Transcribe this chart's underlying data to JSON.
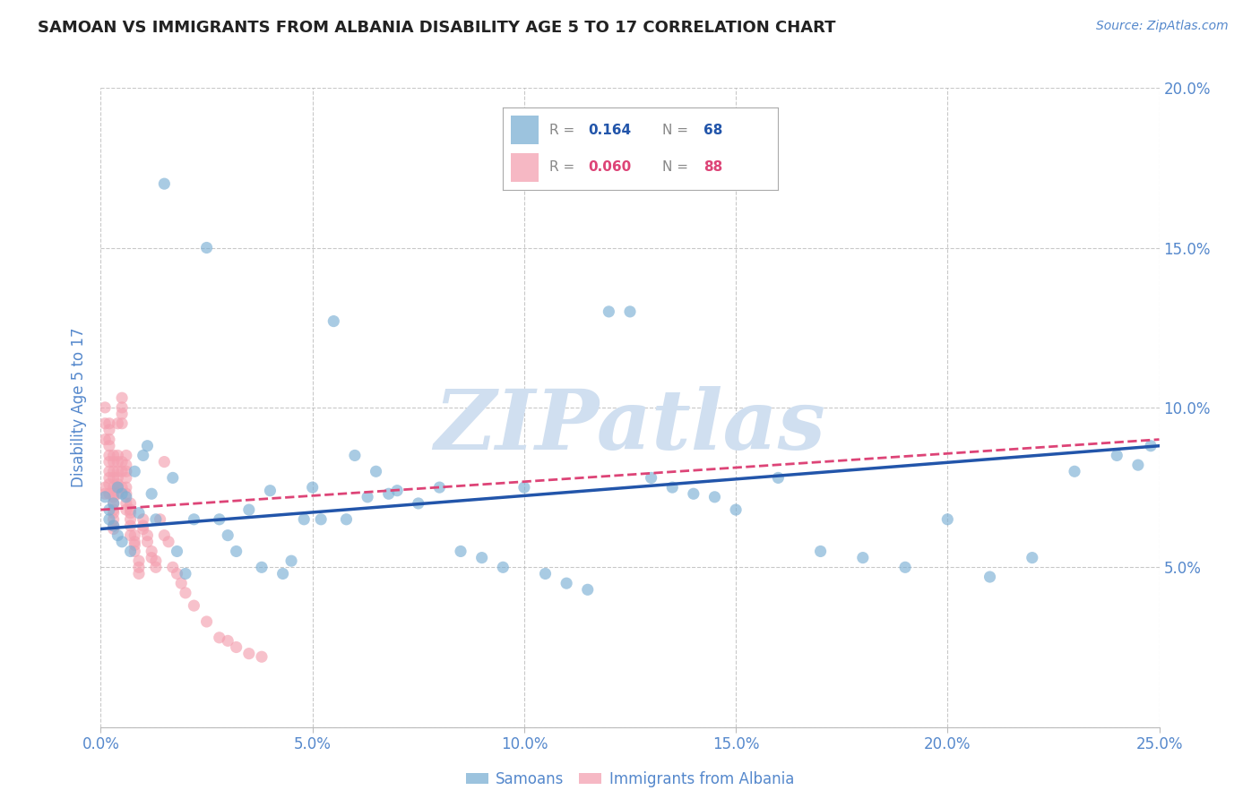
{
  "title": "SAMOAN VS IMMIGRANTS FROM ALBANIA DISABILITY AGE 5 TO 17 CORRELATION CHART",
  "source": "Source: ZipAtlas.com",
  "ylabel": "Disability Age 5 to 17",
  "xlim": [
    0.0,
    0.25
  ],
  "ylim": [
    0.0,
    0.2
  ],
  "xticks": [
    0.0,
    0.05,
    0.1,
    0.15,
    0.2,
    0.25
  ],
  "yticks": [
    0.0,
    0.05,
    0.1,
    0.15,
    0.2
  ],
  "xtick_labels": [
    "0.0%",
    "5.0%",
    "10.0%",
    "15.0%",
    "20.0%",
    "25.0%"
  ],
  "ytick_labels_right": [
    "",
    "5.0%",
    "10.0%",
    "15.0%",
    "20.0%"
  ],
  "samoan_color": "#7bafd4",
  "albania_color": "#f4a0b0",
  "samoan_trend_color": "#2255aa",
  "albania_trend_color": "#dd4477",
  "watermark": "ZIPatlas",
  "watermark_color": "#d0dff0",
  "background_color": "#ffffff",
  "grid_color": "#bbbbbb",
  "axis_color": "#5588cc",
  "samoan_x": [
    0.001,
    0.002,
    0.002,
    0.003,
    0.003,
    0.004,
    0.004,
    0.005,
    0.005,
    0.006,
    0.007,
    0.008,
    0.009,
    0.01,
    0.011,
    0.012,
    0.013,
    0.015,
    0.017,
    0.018,
    0.02,
    0.022,
    0.025,
    0.028,
    0.03,
    0.032,
    0.035,
    0.038,
    0.04,
    0.043,
    0.045,
    0.048,
    0.05,
    0.052,
    0.055,
    0.058,
    0.06,
    0.063,
    0.065,
    0.068,
    0.07,
    0.075,
    0.08,
    0.085,
    0.09,
    0.095,
    0.1,
    0.105,
    0.11,
    0.115,
    0.12,
    0.125,
    0.13,
    0.135,
    0.14,
    0.145,
    0.15,
    0.16,
    0.17,
    0.18,
    0.19,
    0.2,
    0.21,
    0.22,
    0.23,
    0.24,
    0.245,
    0.248
  ],
  "samoan_y": [
    0.072,
    0.068,
    0.065,
    0.07,
    0.063,
    0.075,
    0.06,
    0.073,
    0.058,
    0.072,
    0.055,
    0.08,
    0.067,
    0.085,
    0.088,
    0.073,
    0.065,
    0.17,
    0.078,
    0.055,
    0.048,
    0.065,
    0.15,
    0.065,
    0.06,
    0.055,
    0.068,
    0.05,
    0.074,
    0.048,
    0.052,
    0.065,
    0.075,
    0.065,
    0.127,
    0.065,
    0.085,
    0.072,
    0.08,
    0.073,
    0.074,
    0.07,
    0.075,
    0.055,
    0.053,
    0.05,
    0.075,
    0.048,
    0.045,
    0.043,
    0.13,
    0.13,
    0.078,
    0.075,
    0.073,
    0.072,
    0.068,
    0.078,
    0.055,
    0.053,
    0.05,
    0.065,
    0.047,
    0.053,
    0.08,
    0.085,
    0.082,
    0.088
  ],
  "albania_x": [
    0.001,
    0.001,
    0.001,
    0.001,
    0.001,
    0.002,
    0.002,
    0.002,
    0.002,
    0.002,
    0.002,
    0.002,
    0.002,
    0.002,
    0.002,
    0.003,
    0.003,
    0.003,
    0.003,
    0.003,
    0.003,
    0.003,
    0.003,
    0.003,
    0.003,
    0.003,
    0.003,
    0.003,
    0.004,
    0.004,
    0.004,
    0.004,
    0.004,
    0.004,
    0.004,
    0.004,
    0.005,
    0.005,
    0.005,
    0.005,
    0.005,
    0.005,
    0.005,
    0.006,
    0.006,
    0.006,
    0.006,
    0.006,
    0.006,
    0.006,
    0.006,
    0.007,
    0.007,
    0.007,
    0.007,
    0.007,
    0.007,
    0.008,
    0.008,
    0.008,
    0.008,
    0.009,
    0.009,
    0.009,
    0.01,
    0.01,
    0.01,
    0.011,
    0.011,
    0.012,
    0.012,
    0.013,
    0.013,
    0.014,
    0.015,
    0.015,
    0.016,
    0.017,
    0.018,
    0.019,
    0.02,
    0.022,
    0.025,
    0.028,
    0.03,
    0.032,
    0.035,
    0.038
  ],
  "albania_y": [
    0.075,
    0.1,
    0.095,
    0.09,
    0.073,
    0.095,
    0.093,
    0.09,
    0.088,
    0.085,
    0.083,
    0.08,
    0.078,
    0.076,
    0.073,
    0.085,
    0.083,
    0.08,
    0.078,
    0.075,
    0.073,
    0.072,
    0.07,
    0.068,
    0.067,
    0.065,
    0.063,
    0.062,
    0.095,
    0.085,
    0.083,
    0.08,
    0.078,
    0.076,
    0.075,
    0.073,
    0.103,
    0.1,
    0.098,
    0.095,
    0.083,
    0.08,
    0.075,
    0.085,
    0.082,
    0.08,
    0.078,
    0.075,
    0.073,
    0.07,
    0.068,
    0.07,
    0.068,
    0.067,
    0.065,
    0.063,
    0.06,
    0.06,
    0.058,
    0.057,
    0.055,
    0.052,
    0.05,
    0.048,
    0.065,
    0.063,
    0.062,
    0.06,
    0.058,
    0.055,
    0.053,
    0.052,
    0.05,
    0.065,
    0.083,
    0.06,
    0.058,
    0.05,
    0.048,
    0.045,
    0.042,
    0.038,
    0.033,
    0.028,
    0.027,
    0.025,
    0.023,
    0.022
  ],
  "samoan_trend_x": [
    0.0,
    0.25
  ],
  "samoan_trend_y_start": 0.062,
  "samoan_trend_y_end": 0.088,
  "albania_trend_y_start": 0.068,
  "albania_trend_y_end": 0.09
}
